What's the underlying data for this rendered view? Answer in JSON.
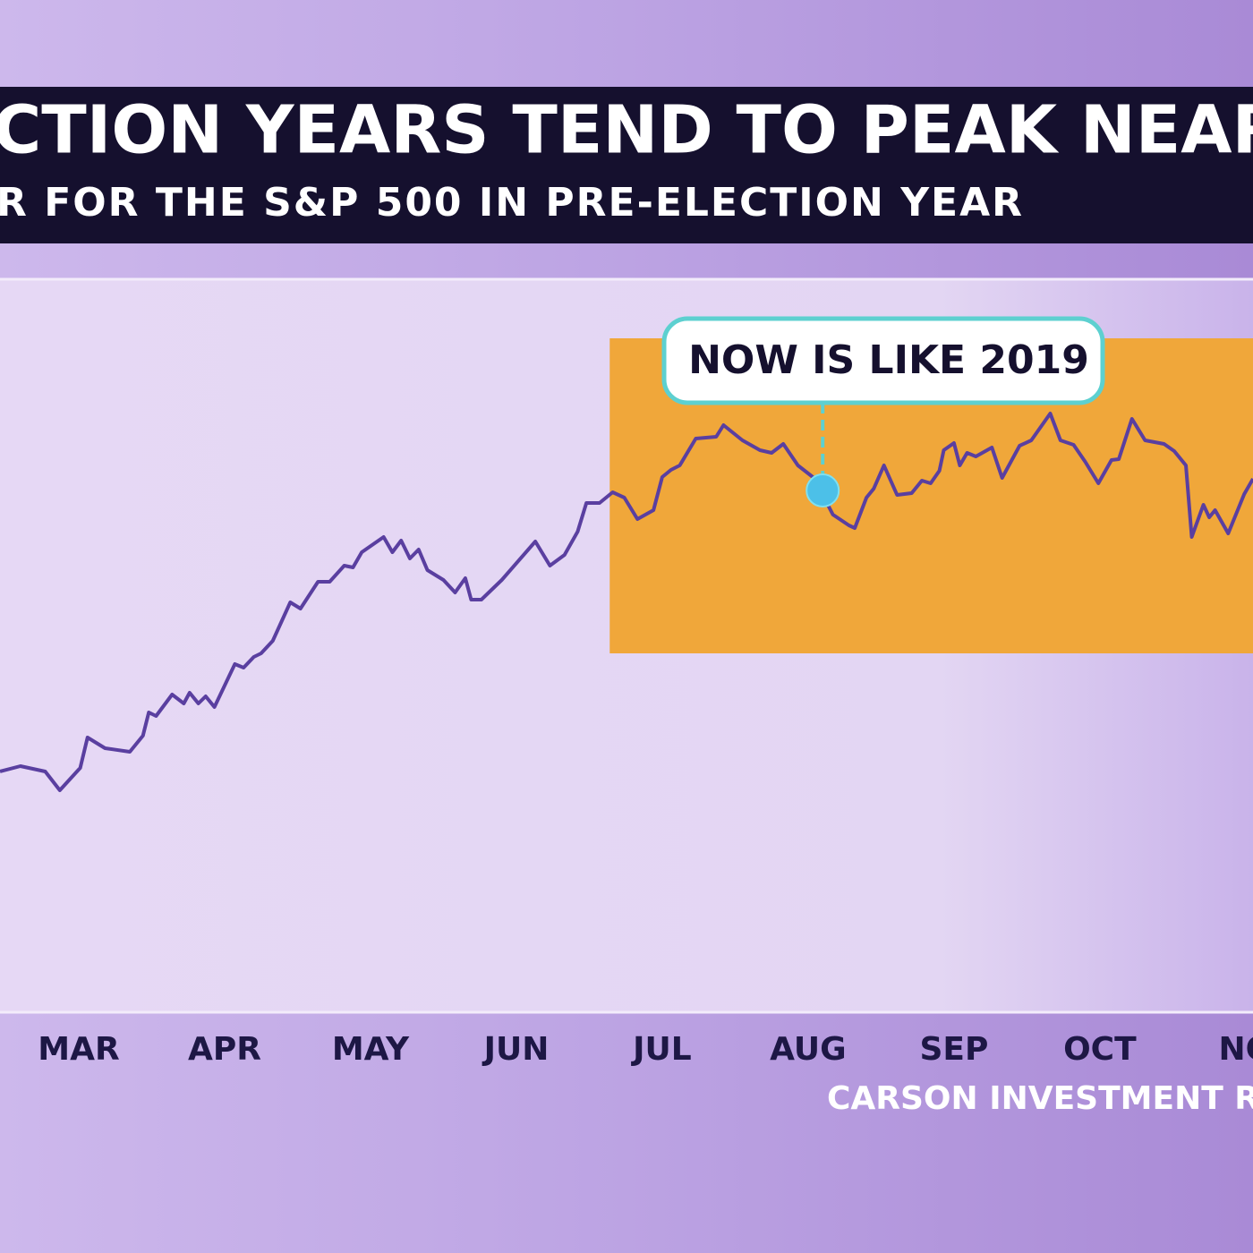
{
  "chart_data": {
    "type": "line",
    "title": "CTION YEARS TEND TO PEAK NEAR H",
    "subtitle": "R FOR THE S&P 500 IN PRE-ELECTION YEAR",
    "source": "CARSON INVESTMENT RES",
    "xlim": [
      2.46,
      11.05
    ],
    "ylim": [
      0,
      81.8
    ],
    "xticks": [
      {
        "value": 3,
        "label": "MAR"
      },
      {
        "value": 4,
        "label": "APR"
      },
      {
        "value": 5,
        "label": "MAY"
      },
      {
        "value": 6,
        "label": "JUN"
      },
      {
        "value": 7,
        "label": "JUL"
      },
      {
        "value": 8,
        "label": "AUG"
      },
      {
        "value": 9,
        "label": "SEP"
      },
      {
        "value": 10,
        "label": "OCT"
      },
      {
        "value": 11,
        "label": "NO"
      }
    ],
    "highlight": {
      "x": [
        6.64,
        11.05
      ],
      "y": [
        40,
        75.2
      ],
      "color": "#f0a73a"
    },
    "annotation": {
      "text": "NOW IS LIKE 2019",
      "x": 8.1,
      "y": 58.2,
      "color": "#4cc0e8"
    },
    "series": [
      {
        "color": "#5a3fa0",
        "x": [
          2.46,
          2.6,
          2.77,
          2.87,
          3.01,
          3.06,
          3.18,
          3.35,
          3.44,
          3.48,
          3.53,
          3.64,
          3.72,
          3.76,
          3.82,
          3.87,
          3.93,
          4.07,
          4.13,
          4.2,
          4.25,
          4.33,
          4.45,
          4.52,
          4.64,
          4.72,
          4.82,
          4.88,
          4.94,
          5.09,
          5.15,
          5.21,
          5.27,
          5.33,
          5.39,
          5.5,
          5.58,
          5.65,
          5.69,
          5.76,
          5.9,
          6.13,
          6.23,
          6.33,
          6.42,
          6.48,
          6.57,
          6.66,
          6.74,
          6.83,
          6.94,
          7.0,
          7.06,
          7.12,
          7.23,
          7.37,
          7.42,
          7.55,
          7.67,
          7.75,
          7.83,
          7.93,
          8.04,
          8.17,
          8.28,
          8.32,
          8.4,
          8.45,
          8.52,
          8.61,
          8.71,
          8.78,
          8.84,
          8.9,
          8.93,
          9.0,
          9.04,
          9.09,
          9.15,
          9.26,
          9.33,
          9.45,
          9.53,
          9.66,
          9.73,
          9.82,
          9.9,
          9.99,
          10.08,
          10.13,
          10.22,
          10.31,
          10.44,
          10.51,
          10.59,
          10.63,
          10.71,
          10.75,
          10.79,
          10.88,
          10.99,
          11.05
        ],
        "values": [
          26.8,
          27.4,
          26.8,
          24.7,
          27.2,
          30.6,
          29.4,
          29,
          30.8,
          33.4,
          33,
          35.4,
          34.4,
          35.6,
          34.4,
          35.2,
          34,
          38.8,
          38.4,
          39.6,
          40,
          41.4,
          45.7,
          45,
          48,
          48,
          49.8,
          49.6,
          51.3,
          53,
          51.3,
          52.6,
          50.6,
          51.6,
          49.3,
          48.2,
          46.8,
          48.4,
          46,
          46,
          48.2,
          52.5,
          49.8,
          51,
          53.6,
          56.8,
          56.8,
          58,
          57.4,
          55,
          56,
          59.7,
          60.5,
          61,
          64,
          64.2,
          65.5,
          63.8,
          62.7,
          62.4,
          63.4,
          61,
          59.6,
          55.5,
          54.3,
          54,
          57.4,
          58.4,
          61,
          57.7,
          57.9,
          59.3,
          59,
          60.4,
          62.7,
          63.5,
          61,
          62.4,
          62,
          63,
          59.6,
          63.2,
          63.8,
          66.8,
          63.8,
          63.3,
          61.4,
          59,
          61.6,
          61.7,
          66.2,
          63.8,
          63.4,
          62.6,
          61,
          53,
          56.6,
          55.2,
          56,
          53.4,
          57.8,
          59.5
        ]
      }
    ]
  }
}
